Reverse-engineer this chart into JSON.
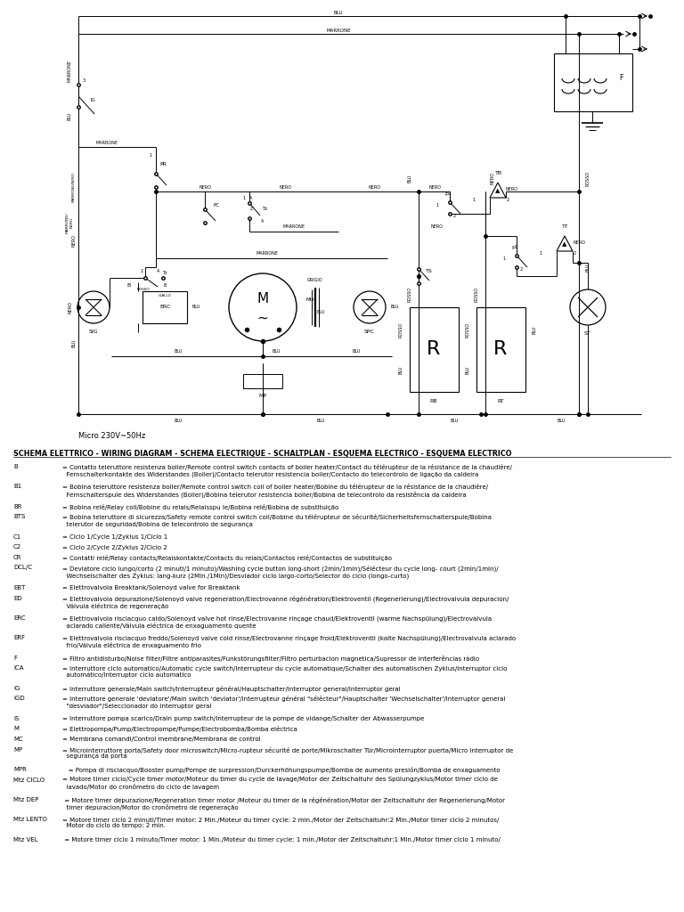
{
  "bg_color": "#ffffff",
  "micro_label": "Micro 230V~50Hz",
  "schema_header": "SCHEMA ELETTRICO - WIRING DIAGRAM - SCHEMA ELECTRIQUE - SCHALTPLAN - ESQUEMA ELECTRICO - ESQUEMA ELECTRICO",
  "legend_entries": [
    [
      "B",
      "= Contatto teleruttore resistenza boiler/Remote control switch contacts of boiler heater/Contact du télérupteur de la résistance de la chaudière/\n  Fernschalterkontakte des Widerstandes (Boiler)/Contacto telerutor resistencia boiler/Contacto do telecontrolo de ligação da caldeira"
    ],
    [
      "B1",
      "= Bobina teleruttore resistenza boiler/Remote control switch coil of boiler heater/Bobine du télérupteur de la résistance de la chaudière/\n  Fernschalterspule des Widerstandes (Boiler)/Bobina telerutor resistencia boiler/Bobina de telecontrolo da resistência da caldeira"
    ],
    [
      "BR",
      "= Bobina relé/Relay coil/Bobine du relais/Relaisspu le/Bobina relé/Bobina de substituição"
    ],
    [
      "BTS",
      "= Bobina teleruttore di sicurezza/Safety remote control switch coil/Bobine du télérupteur de sécurité/Sicherheitsfernschalterspule/Bobina\n  telerutor de seguridad/Bobina de telecontrolo de segurança"
    ],
    [
      "C1",
      "= Ciclo 1/Cycle 1/Zyklus 1/Ciclo 1"
    ],
    [
      "C2",
      "= Ciclo 2/Cycle 2/Zyklus 2/Ciclo 2"
    ],
    [
      "CR",
      "= Contatti relé/Relay contacts/Relaiskontakte/Contacts du relais/Contactos relé/Contactos de substituição"
    ],
    [
      "DCL/C",
      "= Deviatore ciclo lungo/corto (2 minuti/1 minuto)/Washing cycle button long-short (2min/1min)/Sélécteur du cycle long- court (2min/1min)/\n  Wechselschalter des Zyklus: lang-kurz (2Min./1Min)/Desviador ciclo largo-corto/Selector do ciclo (longo-curto)"
    ],
    [
      "EBT",
      "= Elettrovalvola Breaktank/Solenoyd valve for Breaktank"
    ],
    [
      "ED",
      "= Elettrovalvola depurazione/Solenoyd valve regeneration/Electrovanne régénération/Elektroventil (Regenerierung)/Electrovalvula depuracion/\n  Válvula eléctrica de regeneração"
    ],
    [
      "ERC",
      "= Elettrovalvola risciacquo caldo/Solenoyd valve hot rinse/Electrovanne rinçage chaud/Elektroventil (warme Nachspülung)/Electrovalvula\n  aclarado caliente/Válvula eléctrica de enxaguamento quente"
    ],
    [
      "ERF",
      "= Elettrovalvola risciacquo freddo/Solenoyd valve cold rinse/Electrovanne rinçage froid/Elektroventil (kalte Nachspülung)/Electrovalvula aclarado\n  frio/Válvula eléctrica de enxaguamento frio"
    ],
    [
      "F",
      "= Filtro antidisturbo/Noise filter/Filtre antiparasites/Funkstörungsfilter/Filtro perturbacion magnetica/Supressor de interferências rádio"
    ],
    [
      "ICA",
      "= Interruttore ciclo automatico/Automatic cycle switch/Interrupteur du cycle automatique/Schalter des automatischen Zyklus/Interruptor ciclo\n  automático/Interruptor ciclo automatico"
    ],
    [
      "IG",
      "= Interruttore generale/Main switch/Interrupteur général/Hauptschalter/Interruptor general/Interruptor geral"
    ],
    [
      "IGD",
      "= Interruttore generale 'deviatore'/Main switch 'deviator'/Interrupteur général \"sélécteur\"/Hauptschalter 'Wechselschalter'/Interruptor general\n  \"desviador\"/Seleccionador do interruptor geral"
    ],
    [
      "IS",
      "= Interruttore pompa scarico/Drain pump switch/Interrupteur de la pompe de vidange/Schalter der Abwasserpumpe"
    ],
    [
      "M",
      "= Elettropompa/Pump/Electropompe/Pumpe/Electrobomba/Bomba eléctrica"
    ],
    [
      "MC",
      "= Membrana comandi/Control membrane/Membrana de control"
    ],
    [
      "MP",
      "= Microinterruttore porta/Safety door microswitch/Micro-rupteur sécurité de porte/Mikroschalter Tür/Microinterruptor puerta/Micro interruptor de\n  segurança da porta"
    ],
    [
      "MPR",
      "   = Pompa di risciacquo/Booster pump/Pompe de surpression/Durckerhöhungspumpe/Bomba de aumento presión/Bomba de enxaguamento"
    ],
    [
      "Mtz CICLO",
      "= Motore timer ciclo/Cycle timer motor/Moteur du timer du cycle de lavage/Motor der Zeitschaltuhr des Spülungzyklus/Motor timer ciclo de\n  lavado/Motor do cronômetro do ciclo de lavagem"
    ],
    [
      "Mtz DEP",
      " = Motore timer depurazione/Regeneration timer motor /Moteur du timer de la régénération/Motor der Zeitschaltuhr der Regenerierung/Motor\n  timer depuracion/Motor do cronômetro de regeneração"
    ],
    [
      "Mtz LENTO",
      "= Motore timer ciclo 2 minuti/Timer motor: 2 Min./Moteur du timer cycle: 2 min./Motor der Zeitschaltuhr:2 Min./Motor timer ciclo 2 minutos/\n  Motor do ciclo do tempo: 2 min."
    ],
    [
      "Mtz VEL",
      " = Motore timer ciclo 1 minuto/Timer motor: 1 Min./Moteur du timer cycle: 1 min./Motor der Zeitschaltuhr:1 Min./Motor timer ciclo 1 minuto/"
    ]
  ]
}
